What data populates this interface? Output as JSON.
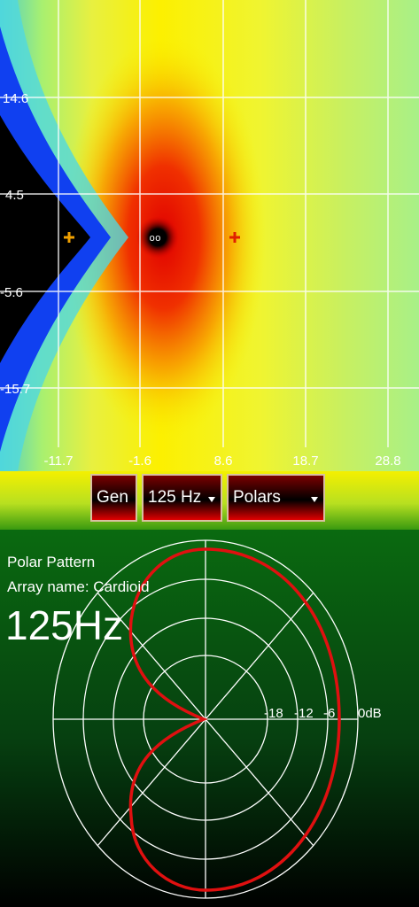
{
  "field_map": {
    "y_ticks": [
      "14.6",
      "4.5",
      "-5.6",
      "-15.7"
    ],
    "x_ticks": [
      "-11.7",
      "-1.6",
      "8.6",
      "18.7",
      "28.8"
    ],
    "source_marker": "oo"
  },
  "toolbar": {
    "generator_button": "Gen",
    "frequency_select": "125 Hz",
    "view_select": "Polars"
  },
  "polar_panel": {
    "title": "Polar Pattern",
    "array_name": "Array name: Cardioid",
    "frequency": "125Hz",
    "ring_labels": [
      "-18",
      "-12",
      "-6",
      "0dB"
    ]
  }
}
